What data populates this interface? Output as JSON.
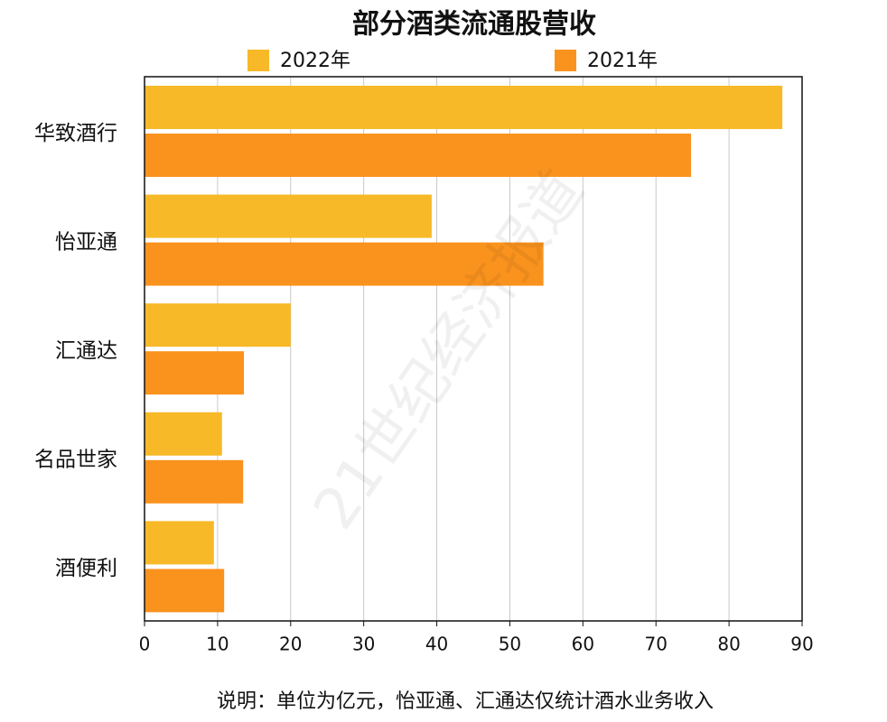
{
  "chart_data": {
    "type": "hbar",
    "title": "部分酒类流通股营收",
    "categories": [
      "华致酒行",
      "怡亚通",
      "汇通达",
      "名品世家",
      "酒便利"
    ],
    "series": [
      {
        "name": "2022年",
        "color": "#f7b928",
        "values": [
          87.3,
          39.3,
          20.0,
          10.6,
          9.5
        ]
      },
      {
        "name": "2021年",
        "color": "#fa931e",
        "values": [
          74.8,
          54.6,
          13.6,
          13.5,
          10.9
        ]
      }
    ],
    "xlim": [
      0,
      90
    ],
    "xticks": [
      0,
      10,
      20,
      30,
      40,
      50,
      60,
      70,
      80,
      90
    ],
    "grid": true,
    "note": "说明：单位为亿元，怡亚通、汇通达仅统计酒水业务收入",
    "watermark": "21世纪经济报道"
  }
}
